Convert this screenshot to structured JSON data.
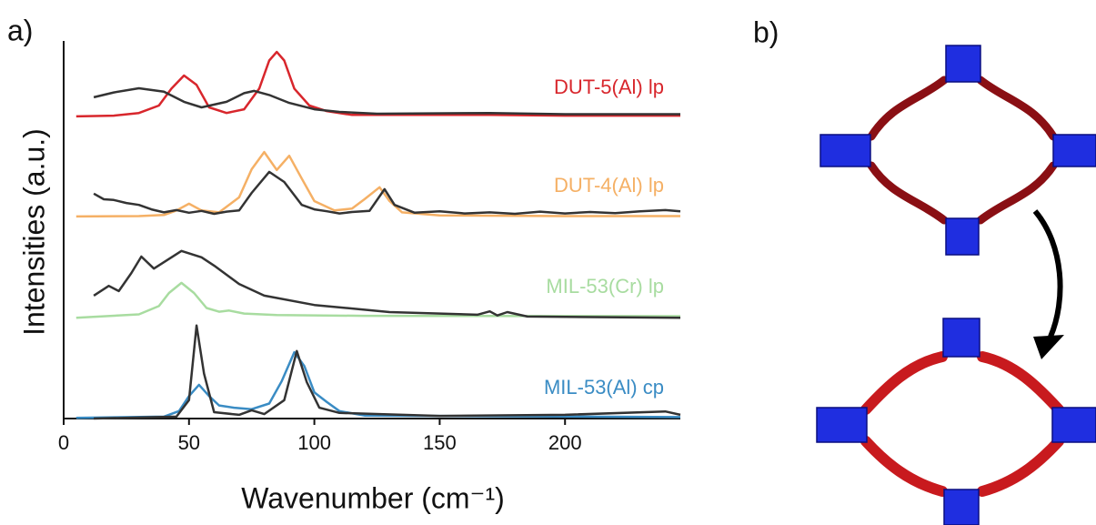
{
  "panel_labels": [
    "a)",
    "b)"
  ],
  "chart_data": {
    "type": "line",
    "x_label": "Wavenumber (cm⁻¹)",
    "y_label": "Intensities (a.u.)",
    "xlim": [
      0,
      246
    ],
    "xticks": [
      0,
      50,
      100,
      150,
      200
    ],
    "ylim": [
      0,
      100
    ],
    "series": [
      {
        "name": "DUT-5(Al) lp",
        "color": "#d8262c",
        "x": [
          5,
          20,
          30,
          38,
          43,
          48,
          53,
          58,
          65,
          72,
          78,
          82,
          85,
          88,
          92,
          98,
          105,
          115,
          140,
          170,
          200,
          246
        ],
        "values": [
          80.6,
          80.8,
          81.5,
          83.5,
          88,
          91.5,
          89,
          83,
          81.5,
          82.5,
          88,
          95.5,
          97.8,
          95.5,
          88,
          83.5,
          82,
          81,
          81,
          81,
          80.8,
          80.8
        ]
      },
      {
        "color": "#333333",
        "x": [
          12,
          20,
          30,
          40,
          48,
          55,
          65,
          72,
          76,
          82,
          90,
          100,
          110,
          125,
          170,
          200,
          246
        ],
        "values": [
          85.7,
          87,
          88.1,
          87.2,
          84.5,
          83,
          84.5,
          86.8,
          87.4,
          86.3,
          84.2,
          82.5,
          81.8,
          81.3,
          81.5,
          81.2,
          81.2
        ]
      },
      {
        "name": "DUT-4(Al) lp",
        "color": "#f5b065",
        "x": [
          5,
          30,
          40,
          45,
          50,
          55,
          62,
          70,
          75,
          80,
          85,
          90,
          95,
          100,
          108,
          115,
          120,
          126,
          130,
          135,
          150,
          200,
          246
        ],
        "values": [
          53.9,
          54,
          54.3,
          55.5,
          57.3,
          55.5,
          55,
          59,
          66.5,
          71.1,
          66.3,
          70.1,
          64,
          58,
          55.5,
          56,
          58.5,
          61.7,
          58,
          55,
          54.2,
          54,
          54
        ]
      },
      {
        "color": "#333333",
        "x": [
          12,
          16,
          20,
          25,
          30,
          35,
          40,
          45,
          50,
          55,
          60,
          65,
          70,
          75,
          82,
          88,
          95,
          100,
          105,
          110,
          115,
          122,
          128,
          132,
          140,
          150,
          160,
          170,
          180,
          190,
          200,
          210,
          220,
          230,
          240,
          246
        ],
        "values": [
          60,
          58.5,
          58.3,
          57.5,
          57,
          55.8,
          55,
          55.6,
          54.9,
          55.4,
          54.6,
          55.2,
          55.5,
          60.2,
          65.8,
          63.1,
          57,
          55.8,
          55.3,
          54.7,
          55.1,
          55.4,
          61.2,
          57,
          54.9,
          55.3,
          54.7,
          55,
          54.6,
          55.2,
          54.7,
          55.1,
          54.8,
          55.3,
          55.6,
          55.3
        ]
      },
      {
        "name": "MIL-53(Cr) lp",
        "color": "#a8dca0",
        "x": [
          5,
          30,
          38,
          42,
          47,
          52,
          57,
          62,
          66,
          72,
          85,
          120,
          246
        ],
        "values": [
          26.9,
          27.8,
          30,
          33.5,
          36.2,
          33.5,
          29.5,
          28.5,
          28.8,
          28,
          27.6,
          27.4,
          27.3
        ]
      },
      {
        "color": "#333333",
        "x": [
          12,
          18,
          22,
          27,
          31,
          36,
          47,
          55,
          60,
          70,
          80,
          100,
          130,
          165,
          170,
          173,
          177,
          185,
          246
        ],
        "values": [
          32.8,
          35.4,
          34,
          38.8,
          43.2,
          40,
          44.7,
          43,
          40.8,
          35.9,
          32.8,
          30.3,
          28.4,
          27.7,
          28.6,
          27.5,
          28.4,
          27.2,
          26.9
        ]
      },
      {
        "name": "MIL-53(Al) cp",
        "color": "#3a8cc4",
        "x": [
          5,
          40,
          46,
          50,
          54,
          58,
          62,
          68,
          75,
          82,
          87,
          92,
          96,
          100,
          105,
          110,
          120,
          246
        ],
        "values": [
          0.2,
          0.5,
          2,
          6,
          9,
          6,
          3.5,
          2.9,
          2.5,
          4,
          10,
          17.7,
          14,
          7,
          4.4,
          2,
          0.8,
          0.4
        ]
      },
      {
        "color": "#333333",
        "x": [
          12,
          45,
          50,
          53,
          56,
          60,
          70,
          75,
          80,
          88,
          93,
          97,
          102,
          110,
          150,
          200,
          240,
          246
        ],
        "values": [
          0,
          0.5,
          4.9,
          24.8,
          12,
          1.7,
          1,
          2.2,
          1.2,
          4.9,
          18,
          9.7,
          2.9,
          1.5,
          0.7,
          1,
          1.9,
          1
        ]
      }
    ]
  }
}
